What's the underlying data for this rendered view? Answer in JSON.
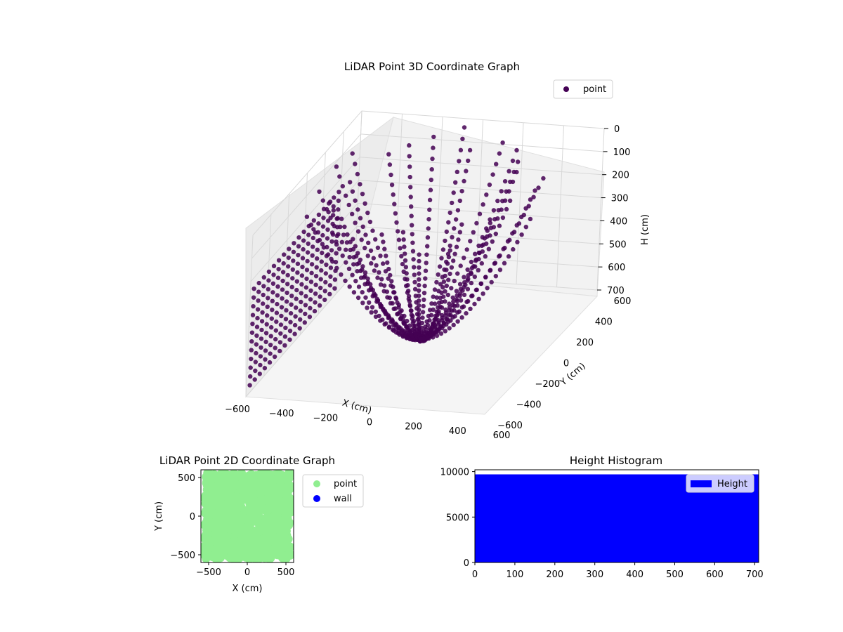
{
  "chart_data": [
    {
      "id": "scatter3d",
      "type": "scatter",
      "title": "LiDAR Point 3D Coordinate Graph",
      "xlabel": "X (cm)",
      "ylabel": "Y (cm)",
      "zlabel": "H (cm)",
      "x_ticks": [
        "−600",
        "−400",
        "−200",
        "0",
        "200",
        "400",
        "600"
      ],
      "y_ticks": [
        "−600",
        "−400",
        "−200",
        "0",
        "200",
        "400",
        "600"
      ],
      "z_ticks": [
        "0",
        "100",
        "200",
        "300",
        "400",
        "500",
        "600",
        "700"
      ],
      "xlim": [
        -600,
        600
      ],
      "ylim": [
        -600,
        600
      ],
      "zlim": [
        700,
        0
      ],
      "grid": true,
      "legend_position": "top-right",
      "series": [
        {
          "name": "point",
          "color": "#440154"
        }
      ]
    },
    {
      "id": "scatter2d",
      "type": "scatter",
      "title": "LiDAR Point 2D Coordinate Graph",
      "xlabel": "X (cm)",
      "ylabel": "Y (cm)",
      "x_ticks": [
        "−500",
        "0",
        "500"
      ],
      "y_ticks": [
        "500",
        "0",
        "−500"
      ],
      "xlim": [
        -600,
        600
      ],
      "ylim": [
        -600,
        600
      ],
      "legend_position": "outside-right",
      "series": [
        {
          "name": "point",
          "color": "#90ee90"
        },
        {
          "name": "wall",
          "color": "#0000ff"
        }
      ]
    },
    {
      "id": "histogram",
      "type": "bar",
      "title": "Height Histogram",
      "x_ticks": [
        "0",
        "100",
        "200",
        "300",
        "400",
        "500",
        "600",
        "700"
      ],
      "y_ticks": [
        "10000",
        "5000",
        "0"
      ],
      "xlim": [
        0,
        710
      ],
      "ylim": [
        0,
        10200
      ],
      "bar_count_level": 9700,
      "legend_position": "top-right",
      "series": [
        {
          "name": "Height",
          "color": "#0000ff"
        }
      ]
    }
  ]
}
